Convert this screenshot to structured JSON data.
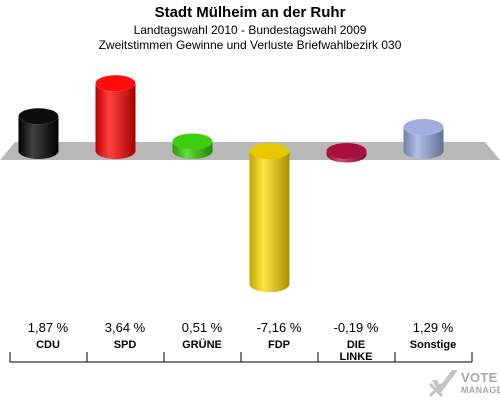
{
  "header": {
    "title": "Stadt Mülheim an der Ruhr",
    "subtitle1": "Landtagswahl 2010 - Bundestagswahl 2009",
    "subtitle2": "Zweitstimmen Gewinne und Verluste Briefwahlbezirk 030"
  },
  "chart_data": {
    "type": "bar",
    "title": "Stadt Mülheim an der Ruhr",
    "categories": [
      "CDU",
      "SPD",
      "GRÜNE",
      "FDP",
      "DIE LINKE",
      "Sonstige"
    ],
    "category_labels": [
      "CDU",
      "SPD",
      "GRÜNE",
      "FDP",
      "DIE\nLINKE",
      "Sonstige"
    ],
    "values": [
      1.87,
      3.64,
      0.51,
      -7.16,
      -0.19,
      1.29
    ],
    "value_labels": [
      "1,87 %",
      "3,64 %",
      "0,51 %",
      "-7,16 %",
      "-0,19 %",
      "1,29 %"
    ],
    "colors": [
      "#000000",
      "#ff0000",
      "#33cc00",
      "#ffdd00",
      "#bb1144",
      "#99aadd"
    ],
    "xlabel": "",
    "ylabel": ""
  },
  "logo": {
    "line1": "VOTE",
    "line2": "MANAGER"
  }
}
